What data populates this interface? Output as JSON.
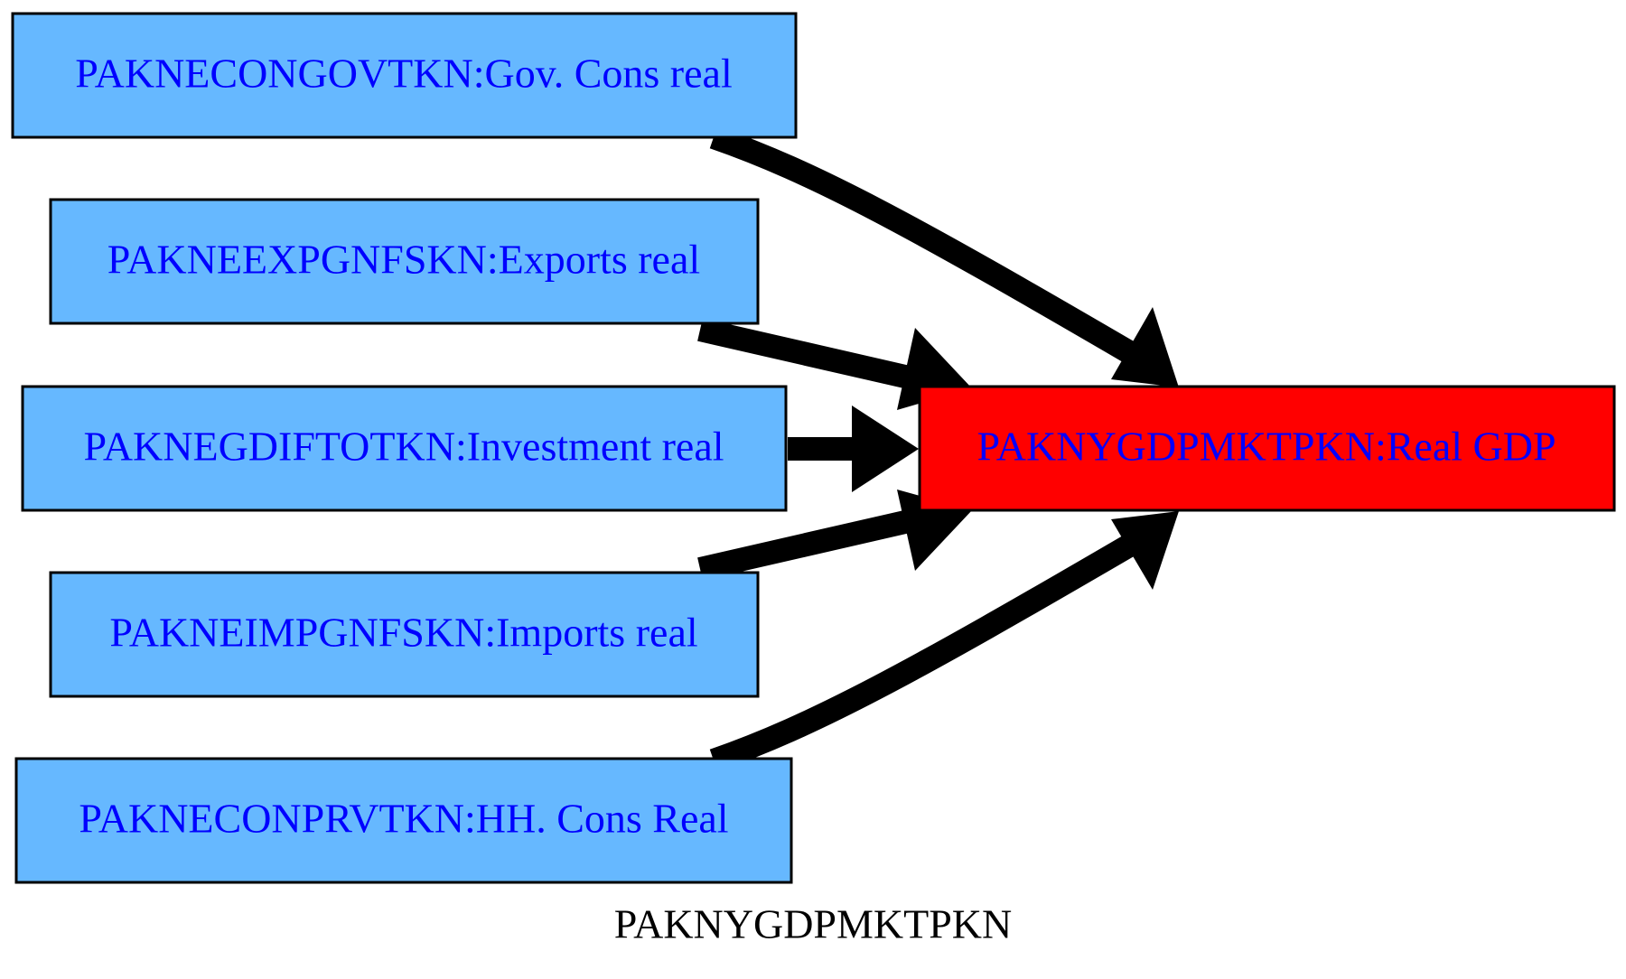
{
  "graph": {
    "label": "PAKNYGDPMKTPKN",
    "colors": {
      "input_fill": "#66b8ff",
      "target_fill": "#ff0000",
      "node_stroke": "#000000",
      "node_text": "#0000ff",
      "edge": "#000000",
      "label_text": "#000000"
    }
  },
  "target": {
    "id": "PAKNYGDPMKTPKN",
    "label": "PAKNYGDPMKTPKN:Real GDP"
  },
  "sources": [
    {
      "id": "PAKNECONGOVTKN",
      "label": "PAKNECONGOVTKN:Gov. Cons real"
    },
    {
      "id": "PAKNEEXPGNFSKN",
      "label": "PAKNEEXPGNFSKN:Exports real"
    },
    {
      "id": "PAKNEGDIFTOTKN",
      "label": "PAKNEGDIFTOTKN:Investment real"
    },
    {
      "id": "PAKNEIMPGNFSKN",
      "label": "PAKNEIMPGNFSKN:Imports real"
    },
    {
      "id": "PAKNECONPRVTKN",
      "label": "PAKNECONPRVTKN:HH. Cons Real"
    }
  ]
}
